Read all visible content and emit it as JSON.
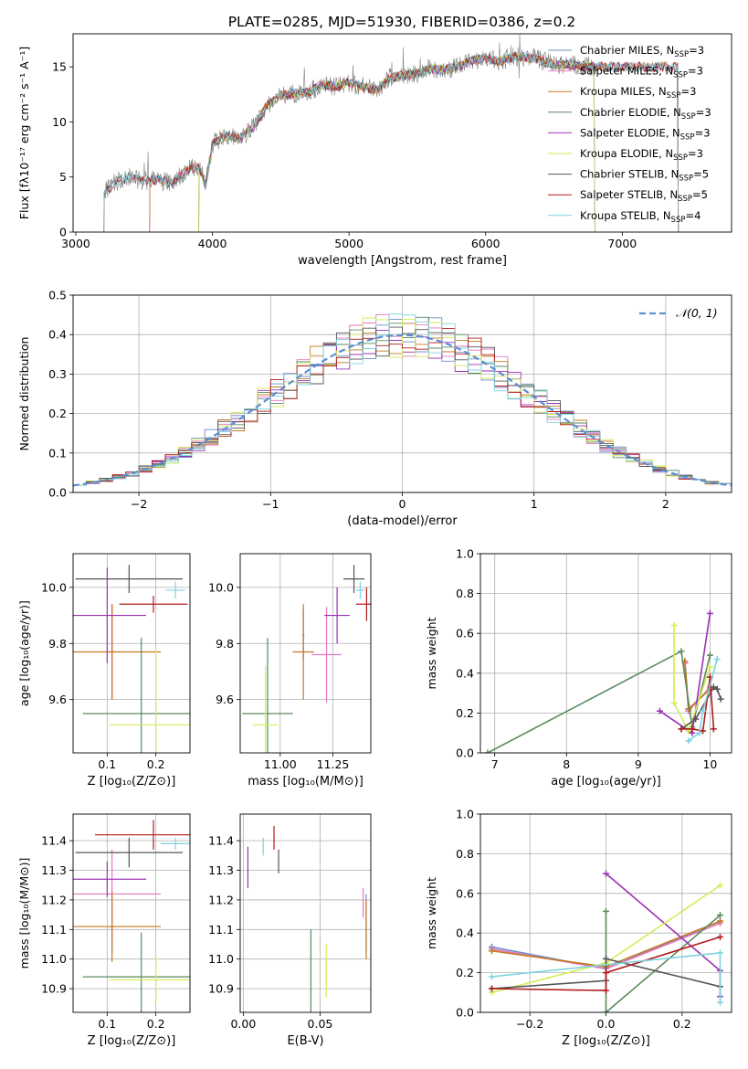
{
  "title": "PLATE=0285, MJD=51930, FIBERID=0386, z=0.2",
  "colors": {
    "Chabrier MILES": "#6b8ec9",
    "Salpeter MILES": "#e377c2",
    "Kroupa MILES": "#c57a1e",
    "Chabrier ELODIE": "#5a8a5c",
    "Salpeter ELODIE": "#9b32b5",
    "Kroupa ELODIE": "#d4ec5a",
    "Chabrier STELIB": "#555555",
    "Salpeter STELIB": "#b21b1b",
    "Kroupa STELIB": "#7fd3e0"
  },
  "chart_data": [
    {
      "id": "spectrum",
      "type": "line",
      "xlabel": "wavelength [Angstrom, rest frame]",
      "ylabel": "Flux [fλ10⁻¹⁷ erg cm⁻² s⁻¹ A⁻¹]",
      "xlim": [
        2980,
        7800
      ],
      "ylim": [
        0,
        18
      ],
      "xticks": [
        3000,
        4000,
        5000,
        6000,
        7000
      ],
      "yticks": [
        0,
        5,
        10,
        15
      ],
      "grid": false,
      "legend_position": "top-right",
      "data_trace": {
        "color": "#808080",
        "knots": [
          [
            3200,
            0
          ],
          [
            3205,
            3.6
          ],
          [
            3300,
            4.6
          ],
          [
            3400,
            5.0
          ],
          [
            3500,
            4.6
          ],
          [
            3600,
            4.8
          ],
          [
            3700,
            4.4
          ],
          [
            3800,
            5.5
          ],
          [
            3900,
            6.0
          ],
          [
            3950,
            4.2
          ],
          [
            4000,
            8.0
          ],
          [
            4100,
            8.8
          ],
          [
            4200,
            8.5
          ],
          [
            4300,
            9.5
          ],
          [
            4400,
            11.5
          ],
          [
            4500,
            12.4
          ],
          [
            4600,
            12.6
          ],
          [
            4700,
            12.7
          ],
          [
            4800,
            13.4
          ],
          [
            4900,
            13.2
          ],
          [
            5000,
            13.6
          ],
          [
            5100,
            13.2
          ],
          [
            5200,
            12.9
          ],
          [
            5300,
            14.0
          ],
          [
            5400,
            14.2
          ],
          [
            5500,
            14.4
          ],
          [
            5600,
            14.8
          ],
          [
            5700,
            14.7
          ],
          [
            5800,
            15.0
          ],
          [
            5900,
            15.6
          ],
          [
            6000,
            15.8
          ],
          [
            6100,
            15.5
          ],
          [
            6200,
            15.9
          ],
          [
            6300,
            15.9
          ],
          [
            6400,
            15.6
          ],
          [
            6500,
            15.2
          ],
          [
            6600,
            15.2
          ],
          [
            6700,
            15.1
          ],
          [
            6790,
            15.0
          ]
        ]
      },
      "series": [
        {
          "name": "Chabrier MILES, N_SSP=3",
          "color": "#6b8ec9",
          "range": [
            3540,
            7410
          ]
        },
        {
          "name": "Salpeter MILES, N_SSP=3",
          "color": "#e377c2",
          "range": [
            3540,
            7410
          ]
        },
        {
          "name": "Kroupa MILES, N_SSP=3",
          "color": "#c57a1e",
          "range": [
            3540,
            7410
          ]
        },
        {
          "name": "Chabrier ELODIE, N_SSP=3",
          "color": "#5a8a5c",
          "range": [
            3900,
            6800
          ]
        },
        {
          "name": "Salpeter ELODIE, N_SSP=3",
          "color": "#9b32b5",
          "range": [
            3900,
            6800
          ]
        },
        {
          "name": "Kroupa ELODIE, N_SSP=3",
          "color": "#d4ec5a",
          "range": [
            3900,
            6800
          ]
        },
        {
          "name": "Chabrier STELIB, N_SSP=5",
          "color": "#555555",
          "range": [
            3205,
            7410
          ]
        },
        {
          "name": "Salpeter STELIB, N_SSP=5",
          "color": "#b21b1b",
          "range": [
            3205,
            7410
          ]
        },
        {
          "name": "Kroupa STELIB, N_SSP=4",
          "color": "#7fd3e0",
          "range": [
            3205,
            7410
          ]
        }
      ]
    },
    {
      "id": "residuals",
      "type": "line",
      "xlabel": "(data-model)/error",
      "ylabel": "Normed distribution",
      "xlim": [
        -2.5,
        2.5
      ],
      "ylim": [
        0,
        0.5
      ],
      "xticks": [
        -2,
        -1,
        0,
        1,
        2
      ],
      "yticks": [
        0.0,
        0.1,
        0.2,
        0.3,
        0.4,
        0.5
      ],
      "grid": true,
      "legend_position": "top-right",
      "legend": "𝒩(0, 1)",
      "gaussian": {
        "mu": 0,
        "sigma": 1,
        "color": "#5a8fd0",
        "dashed": true
      },
      "hist_bins": {
        "start": -2.5,
        "width": 0.1,
        "count": 50
      }
    },
    {
      "id": "age_vs_Z",
      "type": "scatter",
      "xlabel": "Z [log₁₀(Z/Z⊙)]",
      "ylabel": "age  [log₁₀(age/yr)]",
      "xlim": [
        0.03,
        0.27
      ],
      "ylim": [
        9.41,
        10.12
      ],
      "xticks": [
        0.1,
        0.2
      ],
      "yticks": [
        9.6,
        9.8,
        10.0
      ],
      "grid": true,
      "points": [
        {
          "color": "#6b8ec9",
          "x": 0.11,
          "xerr": 0.005,
          "y": 9.77,
          "yerr": 0.17
        },
        {
          "color": "#e377c2",
          "x": 0.11,
          "xerr": 0.005,
          "y": 9.77,
          "yerr": 0.17
        },
        {
          "color": "#c57a1e",
          "x": 0.11,
          "xerr": 0.1,
          "y": 9.77,
          "yerr": 0.17
        },
        {
          "color": "#5a8a5c",
          "x": 0.17,
          "xerr": 0.12,
          "y": 9.55,
          "yerr": 0.27
        },
        {
          "color": "#9b32b5",
          "x": 0.1,
          "xerr": 0.08,
          "y": 9.9,
          "yerr": 0.17
        },
        {
          "color": "#d4ec5a",
          "x": 0.2,
          "xerr": 0.095,
          "y": 9.51,
          "yerr": 0.27
        },
        {
          "color": "#555555",
          "x": 0.145,
          "xerr": 0.11,
          "y": 10.03,
          "yerr": 0.05
        },
        {
          "color": "#b21b1b",
          "x": 0.195,
          "xerr": 0.07,
          "y": 9.94,
          "yerr": 0.03
        },
        {
          "color": "#7fd3e0",
          "x": 0.24,
          "xerr": 0.02,
          "y": 9.99,
          "yerr": 0.03
        }
      ]
    },
    {
      "id": "age_vs_mass",
      "type": "scatter",
      "xlabel": "mass [log₁₀(M/M⊙)]",
      "ylabel": "",
      "xlim": [
        10.81,
        11.43
      ],
      "ylim": [
        9.41,
        10.12
      ],
      "xticks": [
        11.0,
        11.25
      ],
      "yticks": [
        9.6,
        9.8,
        10.0
      ],
      "grid": true,
      "points": [
        {
          "color": "#6b8ec9",
          "x": 11.11,
          "xerr": 0.005,
          "y": 9.83,
          "yerr": 0.09
        },
        {
          "color": "#e377c2",
          "x": 11.22,
          "xerr": 0.07,
          "y": 9.76,
          "yerr": 0.17
        },
        {
          "color": "#c57a1e",
          "x": 11.11,
          "xerr": 0.05,
          "y": 9.77,
          "yerr": 0.17
        },
        {
          "color": "#5a8a5c",
          "x": 10.94,
          "xerr": 0.12,
          "y": 9.55,
          "yerr": 0.27
        },
        {
          "color": "#9b32b5",
          "x": 11.27,
          "xerr": 0.06,
          "y": 9.9,
          "yerr": 0.1
        },
        {
          "color": "#d4ec5a",
          "x": 10.93,
          "xerr": 0.06,
          "y": 9.51,
          "yerr": 0.21
        },
        {
          "color": "#555555",
          "x": 11.35,
          "xerr": 0.05,
          "y": 10.03,
          "yerr": 0.05
        },
        {
          "color": "#b21b1b",
          "x": 11.41,
          "xerr": 0.05,
          "y": 9.94,
          "yerr": 0.06
        },
        {
          "color": "#7fd3e0",
          "x": 11.38,
          "xerr": 0.02,
          "y": 9.99,
          "yerr": 0.03
        }
      ]
    },
    {
      "id": "weight_vs_age",
      "type": "line",
      "xlabel": "age  [log₁₀(age/yr)]",
      "ylabel": "mass weight",
      "xlim": [
        6.8,
        10.3
      ],
      "ylim": [
        0,
        1
      ],
      "xticks": [
        7,
        8,
        9,
        10
      ],
      "yticks": [
        0.0,
        0.2,
        0.4,
        0.6,
        0.8,
        1.0
      ],
      "grid": true,
      "series": [
        {
          "color": "#6b8ec9",
          "points": [
            [
              9.65,
              0.46
            ],
            [
              9.7,
              0.22
            ],
            [
              10.0,
              0.32
            ]
          ]
        },
        {
          "color": "#e377c2",
          "points": [
            [
              9.65,
              0.45
            ],
            [
              9.7,
              0.21
            ],
            [
              10.0,
              0.33
            ]
          ]
        },
        {
          "color": "#c57a1e",
          "points": [
            [
              9.65,
              0.46
            ],
            [
              9.7,
              0.22
            ],
            [
              10.0,
              0.32
            ]
          ]
        },
        {
          "color": "#5a8a5c",
          "points": [
            [
              6.9,
              0.0
            ],
            [
              9.6,
              0.51
            ],
            [
              9.75,
              0.13
            ],
            [
              10.0,
              0.49
            ]
          ]
        },
        {
          "color": "#9b32b5",
          "points": [
            [
              9.3,
              0.21
            ],
            [
              9.75,
              0.1
            ],
            [
              10.0,
              0.7
            ]
          ]
        },
        {
          "color": "#d4ec5a",
          "points": [
            [
              9.5,
              0.64
            ],
            [
              9.5,
              0.25
            ],
            [
              9.7,
              0.11
            ],
            [
              10.0,
              0.43
            ]
          ]
        },
        {
          "color": "#555555",
          "points": [
            [
              9.6,
              0.12
            ],
            [
              9.8,
              0.17
            ],
            [
              10.05,
              0.33
            ],
            [
              10.1,
              0.32
            ],
            [
              10.15,
              0.27
            ]
          ]
        },
        {
          "color": "#b21b1b",
          "points": [
            [
              9.6,
              0.12
            ],
            [
              9.75,
              0.12
            ],
            [
              9.9,
              0.11
            ],
            [
              10.0,
              0.38
            ],
            [
              10.05,
              0.12
            ]
          ]
        },
        {
          "color": "#7fd3e0",
          "points": [
            [
              9.7,
              0.06
            ],
            [
              9.85,
              0.1
            ],
            [
              9.9,
              0.21
            ],
            [
              10.1,
              0.47
            ]
          ]
        }
      ]
    },
    {
      "id": "mass_vs_Z",
      "type": "scatter",
      "xlabel": "Z [log₁₀(Z/Z⊙)]",
      "ylabel": "mass [log₁₀(M/M⊙)]",
      "xlim": [
        0.03,
        0.27
      ],
      "ylim": [
        10.82,
        11.49
      ],
      "xticks": [
        0.1,
        0.2
      ],
      "yticks": [
        10.9,
        11.0,
        11.1,
        11.2,
        11.3,
        11.4
      ],
      "grid": true,
      "points": [
        {
          "color": "#6b8ec9",
          "x": 0.11,
          "xerr": 0.005,
          "y": 11.11,
          "yerr": 0.09
        },
        {
          "color": "#e377c2",
          "x": 0.11,
          "xerr": 0.1,
          "y": 11.22,
          "yerr": 0.15
        },
        {
          "color": "#c57a1e",
          "x": 0.11,
          "xerr": 0.1,
          "y": 11.11,
          "yerr": 0.12
        },
        {
          "color": "#5a8a5c",
          "x": 0.17,
          "xerr": 0.12,
          "y": 10.94,
          "yerr": 0.15
        },
        {
          "color": "#9b32b5",
          "x": 0.1,
          "xerr": 0.08,
          "y": 11.27,
          "yerr": 0.06
        },
        {
          "color": "#d4ec5a",
          "x": 0.2,
          "xerr": 0.095,
          "y": 10.93,
          "yerr": 0.08
        },
        {
          "color": "#555555",
          "x": 0.145,
          "xerr": 0.11,
          "y": 11.36,
          "yerr": 0.05
        },
        {
          "color": "#b21b1b",
          "x": 0.195,
          "xerr": 0.12,
          "y": 11.42,
          "yerr": 0.05
        },
        {
          "color": "#7fd3e0",
          "x": 0.24,
          "xerr": 0.03,
          "y": 11.39,
          "yerr": 0.02
        }
      ]
    },
    {
      "id": "mass_vs_ebv",
      "type": "scatter",
      "xlabel": "E(B-V)",
      "ylabel": "",
      "xlim": [
        -0.002,
        0.083
      ],
      "ylim": [
        10.82,
        11.49
      ],
      "xticks": [
        0.0,
        0.05
      ],
      "yticks": [
        10.9,
        11.0,
        11.1,
        11.2,
        11.3,
        11.4
      ],
      "grid": true,
      "points": [
        {
          "color": "#6b8ec9",
          "x": 0.08,
          "xerr": 0.0,
          "y": 11.12,
          "yerr": 0.1
        },
        {
          "color": "#e377c2",
          "x": 0.078,
          "xerr": 0.0,
          "y": 11.19,
          "yerr": 0.05
        },
        {
          "color": "#c57a1e",
          "x": 0.08,
          "xerr": 0.0,
          "y": 11.1,
          "yerr": 0.1
        },
        {
          "color": "#5a8a5c",
          "x": 0.044,
          "xerr": 0.0,
          "y": 10.94,
          "yerr": 0.16
        },
        {
          "color": "#9b32b5",
          "x": 0.003,
          "xerr": 0.0,
          "y": 11.31,
          "yerr": 0.07
        },
        {
          "color": "#d4ec5a",
          "x": 0.054,
          "xerr": 0.0,
          "y": 10.96,
          "yerr": 0.09
        },
        {
          "color": "#555555",
          "x": 0.023,
          "xerr": 0.0,
          "y": 11.33,
          "yerr": 0.04
        },
        {
          "color": "#b21b1b",
          "x": 0.02,
          "xerr": 0.0,
          "y": 11.41,
          "yerr": 0.04
        },
        {
          "color": "#7fd3e0",
          "x": 0.013,
          "xerr": 0.0,
          "y": 11.38,
          "yerr": 0.03
        }
      ]
    },
    {
      "id": "weight_vs_Z",
      "type": "line",
      "xlabel": "Z [log₁₀(Z/Z⊙)]",
      "ylabel": "mass weight",
      "xlim": [
        -0.33,
        0.33
      ],
      "ylim": [
        0,
        1
      ],
      "xticks": [
        -0.2,
        0.0,
        0.2
      ],
      "yticks": [
        0.0,
        0.2,
        0.4,
        0.6,
        0.8,
        1.0
      ],
      "grid": true,
      "series": [
        {
          "color": "#6b8ec9",
          "points": [
            [
              -0.3,
              0.33
            ],
            [
              0.0,
              0.22
            ],
            [
              0.3,
              0.46
            ]
          ]
        },
        {
          "color": "#e377c2",
          "points": [
            [
              -0.3,
              0.32
            ],
            [
              0.0,
              0.22
            ],
            [
              0.3,
              0.45
            ]
          ]
        },
        {
          "color": "#c57a1e",
          "points": [
            [
              -0.3,
              0.31
            ],
            [
              0.0,
              0.23
            ],
            [
              0.3,
              0.46
            ]
          ]
        },
        {
          "color": "#5a8a5c",
          "points": [
            [
              0.0,
              0.51
            ],
            [
              0.0,
              0.0
            ],
            [
              0.3,
              0.49
            ]
          ]
        },
        {
          "color": "#9b32b5",
          "points": [
            [
              0.0,
              0.7
            ],
            [
              0.3,
              0.21
            ],
            [
              0.3,
              0.08
            ]
          ]
        },
        {
          "color": "#d4ec5a",
          "points": [
            [
              -0.3,
              0.1
            ],
            [
              0.0,
              0.25
            ],
            [
              0.3,
              0.64
            ]
          ]
        },
        {
          "color": "#555555",
          "points": [
            [
              -0.3,
              0.12
            ],
            [
              0.0,
              0.16
            ],
            [
              0.0,
              0.27
            ],
            [
              0.3,
              0.13
            ]
          ]
        },
        {
          "color": "#b21b1b",
          "points": [
            [
              -0.3,
              0.12
            ],
            [
              0.0,
              0.11
            ],
            [
              0.0,
              0.2
            ],
            [
              0.3,
              0.38
            ]
          ]
        },
        {
          "color": "#7fd3e0",
          "points": [
            [
              -0.3,
              0.18
            ],
            [
              0.3,
              0.3
            ],
            [
              0.3,
              0.05
            ]
          ]
        }
      ]
    }
  ]
}
